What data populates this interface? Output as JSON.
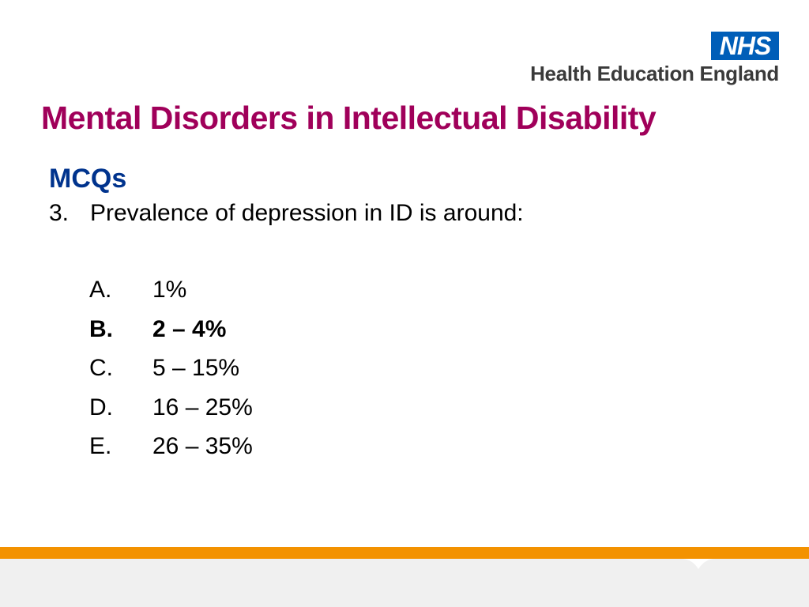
{
  "header": {
    "logo_badge": "NHS",
    "org_name": "Health Education England"
  },
  "slide": {
    "title": "Mental Disorders in Intellectual Disability",
    "section": "MCQs",
    "question": {
      "number": "3.",
      "text": "Prevalence of depression in ID is around:"
    },
    "options": [
      {
        "letter": "A.",
        "text": "1%",
        "correct": false
      },
      {
        "letter": "B.",
        "text": "2 – 4%",
        "correct": true
      },
      {
        "letter": "C.",
        "text": "5 – 15%",
        "correct": false
      },
      {
        "letter": "D.",
        "text": "16 – 25%",
        "correct": false
      },
      {
        "letter": "E.",
        "text": "26 – 35%",
        "correct": false
      }
    ]
  },
  "colors": {
    "title": "#a0005a",
    "section": "#00338d",
    "nhs_blue": "#005eb8",
    "footer_orange": "#f39200",
    "footer_panel": "#f0f0f0"
  }
}
